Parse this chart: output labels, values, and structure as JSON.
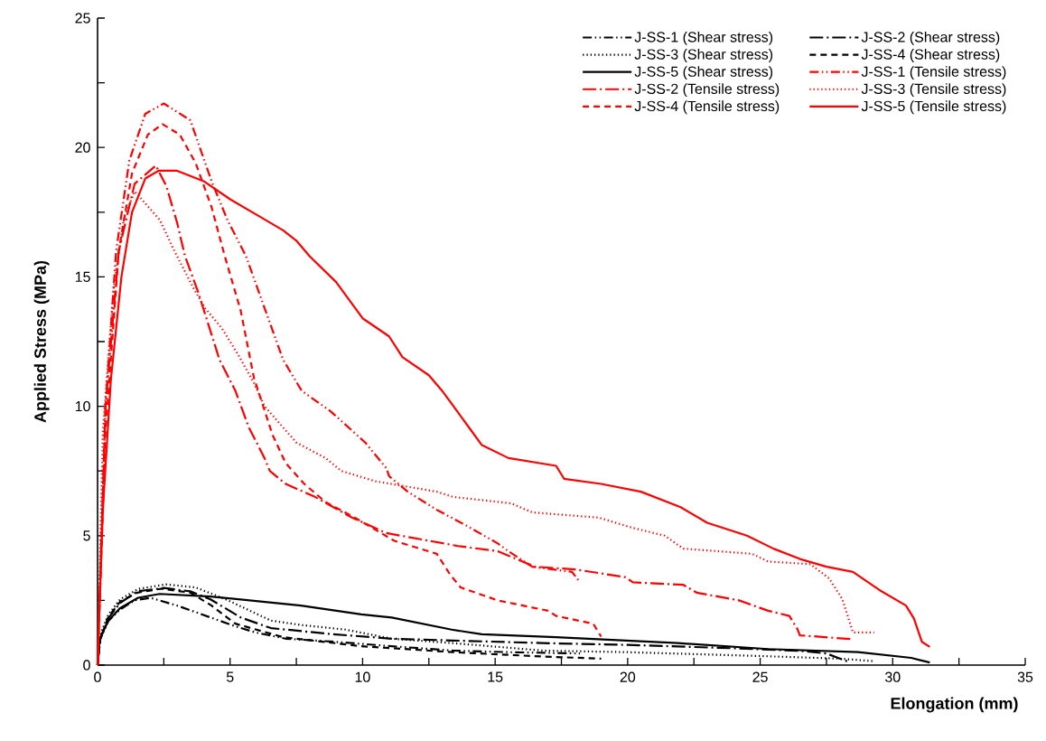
{
  "chart_data": {
    "type": "line",
    "xlabel": "Elongation (mm)",
    "ylabel": "Applied Stress (MPa)",
    "xlim": [
      0,
      35
    ],
    "ylim": [
      0,
      25
    ],
    "xticks": [
      0,
      {
        "value": 2.5,
        "label": null
      },
      5,
      {
        "value": 7.5,
        "label": null
      },
      10,
      {
        "value": 12.5,
        "label": null
      },
      15,
      {
        "value": 17.5,
        "label": null
      },
      20,
      {
        "value": 22.5,
        "label": null
      },
      25,
      {
        "value": 27.5,
        "label": null
      },
      30,
      {
        "value": 32.5,
        "label": null
      },
      35
    ],
    "yticks": [
      0,
      {
        "value": 2.5,
        "label": null
      },
      5,
      {
        "value": 7.5,
        "label": null
      },
      10,
      {
        "value": 12.5,
        "label": null
      },
      15,
      {
        "value": 17.5,
        "label": null
      },
      20,
      {
        "value": 22.5,
        "label": null
      },
      25
    ],
    "legend": "top right",
    "series": [
      {
        "name": "J-SS-1 (Shear stress)",
        "color": "#000000",
        "line_style": "dashdotdot",
        "x": [
          0,
          0.1,
          0.4,
          0.85,
          1.4,
          2.0,
          3.0,
          4.26,
          5.2,
          5.96,
          7.1,
          8.8,
          11.1,
          13.4,
          15.5,
          18.2
        ],
        "values": [
          0,
          1.0,
          1.7,
          2.15,
          2.5,
          2.6,
          2.3,
          1.84,
          1.5,
          1.26,
          1.02,
          0.91,
          0.73,
          0.56,
          0.5,
          0.45
        ]
      },
      {
        "name": "J-SS-2 (Shear stress)",
        "color": "#000000",
        "line_style": "longdashdot",
        "x": [
          0,
          0.1,
          0.4,
          0.85,
          1.5,
          2.5,
          3.5,
          4.26,
          5.4,
          6.54,
          8.8,
          11.1,
          13.4,
          16.8,
          20,
          24,
          26.5,
          27.5,
          28.0,
          28.4
        ],
        "values": [
          0,
          1.0,
          1.8,
          2.4,
          2.85,
          2.98,
          2.85,
          2.54,
          1.84,
          1.43,
          1.2,
          1.02,
          0.95,
          0.85,
          0.78,
          0.65,
          0.55,
          0.45,
          0.25,
          0.1
        ]
      },
      {
        "name": "J-SS-3 (Shear stress)",
        "color": "#000000",
        "line_style": "dotted",
        "x": [
          0,
          0.07,
          0.41,
          0.85,
          1.53,
          2.57,
          3.7,
          4.84,
          6.54,
          7.67,
          9.37,
          11.1,
          13.4,
          16.8,
          20,
          25,
          28,
          29.3
        ],
        "values": [
          0,
          1.1,
          1.96,
          2.54,
          2.94,
          3.12,
          3.0,
          2.54,
          1.72,
          1.55,
          1.37,
          1.02,
          0.85,
          0.56,
          0.5,
          0.35,
          0.25,
          0.15
        ]
      },
      {
        "name": "J-SS-4 (Shear stress)",
        "color": "#000000",
        "line_style": "dashed",
        "x": [
          0,
          0.1,
          0.4,
          0.85,
          1.5,
          2.4,
          3.5,
          4.3,
          5.2,
          7.0,
          9.95,
          13.4,
          16.8,
          19.0
        ],
        "values": [
          0,
          1.0,
          1.85,
          2.45,
          2.8,
          2.95,
          2.8,
          2.3,
          1.6,
          1.08,
          0.73,
          0.5,
          0.33,
          0.25
        ]
      },
      {
        "name": "J-SS-5 (Shear stress)",
        "color": "#000000",
        "line_style": "solid",
        "x": [
          0,
          0.07,
          0.41,
          0.85,
          1.53,
          2.34,
          4.26,
          7.67,
          9.95,
          11.1,
          13.36,
          14.5,
          17.3,
          21.9,
          25.3,
          28.7,
          30.7,
          31.4
        ],
        "values": [
          0,
          0.99,
          1.72,
          2.2,
          2.6,
          2.75,
          2.65,
          2.3,
          1.96,
          1.84,
          1.37,
          1.19,
          1.08,
          0.85,
          0.62,
          0.5,
          0.28,
          0.1
        ]
      },
      {
        "name": "J-SS-1 (Tensile stress)",
        "color": "#ff0000",
        "line_style": "dashdotdot",
        "x": [
          0,
          0.3,
          0.7,
          1.2,
          1.8,
          2.5,
          3.5,
          4.3,
          4.9,
          5.6,
          6.3,
          7.0,
          7.7,
          8.8,
          10.1,
          10.9,
          11.0,
          11.7,
          12.8,
          13.9,
          15.1,
          15.5,
          16.4,
          17.9,
          18.2
        ],
        "values": [
          0,
          10,
          16,
          19.5,
          21.3,
          21.7,
          21.05,
          18.7,
          17.2,
          15.8,
          13.8,
          11.8,
          10.6,
          9.8,
          8.6,
          7.6,
          7.3,
          6.7,
          6.0,
          5.4,
          4.7,
          4.4,
          3.8,
          3.6,
          3.2
        ]
      },
      {
        "name": "J-SS-2 (Tensile stress)",
        "color": "#ff0000",
        "line_style": "longdashdot",
        "x": [
          0,
          0.3,
          0.8,
          1.4,
          2.2,
          2.6,
          3.0,
          3.3,
          3.8,
          4.2,
          4.6,
          5.2,
          5.7,
          6.3,
          6.5,
          7.1,
          8.2,
          9.6,
          10.9,
          13.6,
          15.1,
          16.5,
          18.0,
          19.9,
          20.2,
          22.1,
          22.6,
          24.2,
          25.3,
          26.1,
          26.4,
          26.5,
          28.5
        ],
        "values": [
          0,
          10,
          16,
          18.6,
          19.3,
          18.5,
          17.1,
          15.8,
          14.4,
          13.1,
          11.8,
          10.6,
          9.2,
          8.0,
          7.5,
          7.0,
          6.5,
          5.7,
          5.1,
          4.6,
          4.4,
          3.8,
          3.7,
          3.4,
          3.2,
          3.1,
          2.8,
          2.5,
          2.1,
          1.9,
          1.4,
          1.15,
          1.0
        ]
      },
      {
        "name": "J-SS-3 (Tensile stress)",
        "color": "#ff0000",
        "line_style": "dotted",
        "x": [
          0,
          0.2,
          0.6,
          1.0,
          1.4,
          2.35,
          2.9,
          3.6,
          4.05,
          4.7,
          5.3,
          5.9,
          6.3,
          7.5,
          8.6,
          9.2,
          10.5,
          12.8,
          13.4,
          15.6,
          16.4,
          18.9,
          20.2,
          21.4,
          22.1,
          24.7,
          25.3,
          26.9,
          27.6,
          28.1,
          28.5,
          29.3
        ],
        "values": [
          0,
          9,
          14.5,
          17.3,
          18.3,
          17.2,
          16.0,
          14.6,
          13.8,
          13.0,
          12.0,
          10.9,
          10.0,
          8.6,
          8.0,
          7.5,
          7.1,
          6.7,
          6.5,
          6.25,
          5.9,
          5.7,
          5.3,
          5.0,
          4.5,
          4.3,
          4.0,
          3.9,
          3.35,
          2.55,
          1.26,
          1.26
        ]
      },
      {
        "name": "J-SS-4 (Tensile stress)",
        "color": "#ff0000",
        "line_style": "dashed",
        "x": [
          0,
          0.3,
          0.8,
          1.3,
          1.9,
          2.45,
          3.1,
          3.7,
          4.3,
          4.8,
          5.4,
          5.9,
          6.6,
          7.1,
          7.8,
          8.6,
          9.7,
          10.7,
          11.2,
          12.8,
          13.3,
          13.7,
          15.1,
          17.0,
          17.3,
          18.7,
          19.0
        ],
        "values": [
          0,
          9,
          16,
          19,
          20.5,
          20.9,
          20.5,
          19.4,
          17.7,
          15.8,
          13.7,
          11.1,
          8.9,
          7.8,
          7.0,
          6.3,
          5.7,
          5.1,
          4.8,
          4.3,
          3.5,
          3.0,
          2.5,
          2.1,
          1.9,
          1.6,
          1.1
        ]
      },
      {
        "name": "J-SS-5 (Tensile stress)",
        "color": "#ff0000",
        "line_style": "solid",
        "x": [
          0,
          0.2,
          0.5,
          0.9,
          1.3,
          1.8,
          2.3,
          3,
          4,
          5,
          6,
          7,
          7.5,
          8,
          9,
          10,
          11,
          11.5,
          12.5,
          13,
          14,
          14.5,
          15.5,
          17.3,
          17.6,
          19,
          20.5,
          22,
          23,
          24.5,
          25.5,
          26.5,
          27.5,
          28.5,
          29.5,
          30.5,
          30.8,
          31.1,
          31.4
        ],
        "values": [
          0,
          6,
          11,
          15,
          17.5,
          18.8,
          19.1,
          19.1,
          18.7,
          18,
          17.4,
          16.8,
          16.4,
          15.8,
          14.8,
          13.4,
          12.7,
          11.9,
          11.2,
          10.6,
          9.2,
          8.5,
          8.0,
          7.7,
          7.2,
          7.0,
          6.7,
          6.1,
          5.5,
          5.0,
          4.5,
          4.1,
          3.8,
          3.6,
          2.9,
          2.3,
          1.8,
          0.9,
          0.7
        ]
      }
    ]
  }
}
